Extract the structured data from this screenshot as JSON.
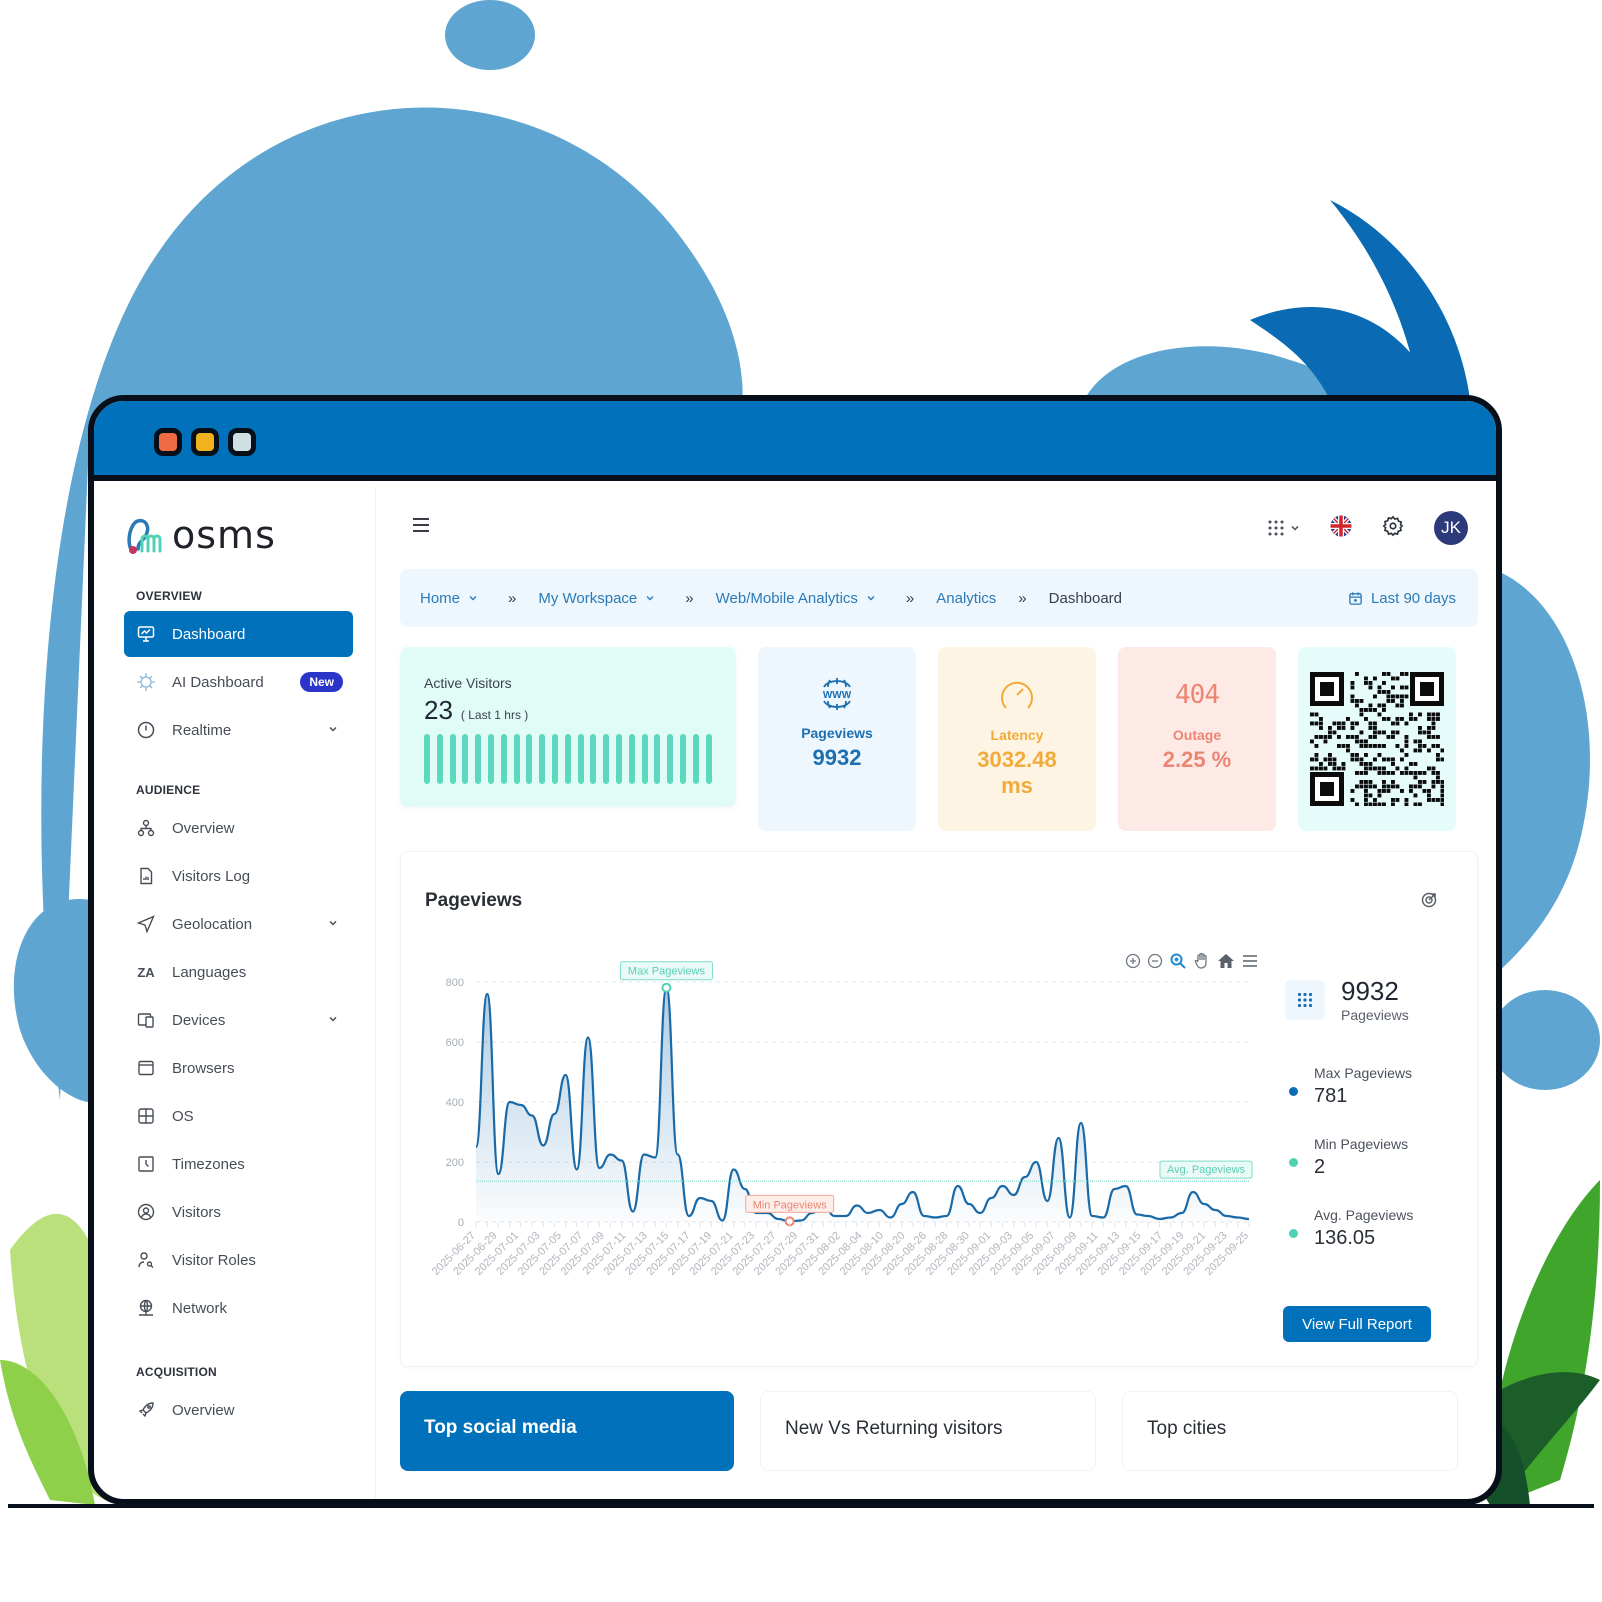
{
  "window": {
    "controls": [
      "close",
      "minimize",
      "maximize"
    ]
  },
  "brand": {
    "name": "OSMS",
    "logo_text": "osms"
  },
  "sidebar": {
    "sections": [
      {
        "label": "OVERVIEW",
        "items": [
          {
            "label": "Dashboard",
            "icon": "monitor-chart-icon",
            "active": true
          },
          {
            "label": "AI Dashboard",
            "icon": "ai-brain-icon",
            "badge": "New"
          },
          {
            "label": "Realtime",
            "icon": "clock-icon",
            "expandable": true
          }
        ]
      },
      {
        "label": "AUDIENCE",
        "items": [
          {
            "label": "Overview",
            "icon": "hierarchy-icon"
          },
          {
            "label": "Visitors Log",
            "icon": "file-chart-icon"
          },
          {
            "label": "Geolocation",
            "icon": "navigation-icon",
            "expandable": true
          },
          {
            "label": "Languages",
            "icon": "translate-icon"
          },
          {
            "label": "Devices",
            "icon": "devices-icon",
            "expandable": true
          },
          {
            "label": "Browsers",
            "icon": "browser-window-icon"
          },
          {
            "label": "OS",
            "icon": "windows-grid-icon"
          },
          {
            "label": "Timezones",
            "icon": "timezone-clock-icon"
          },
          {
            "label": "Visitors",
            "icon": "user-circle-icon"
          },
          {
            "label": "Visitor Roles",
            "icon": "user-search-icon"
          },
          {
            "label": "Network",
            "icon": "globe-network-icon"
          }
        ]
      },
      {
        "label": "ACQUISITION",
        "items": [
          {
            "label": "Overview",
            "icon": "rocket-icon"
          }
        ]
      }
    ]
  },
  "topbar": {
    "menu_icon": "hamburger-icon",
    "apps_icon": "grid-dots-icon",
    "language": "English (UK)",
    "settings_icon": "gear-icon",
    "avatar_initials": "JK"
  },
  "breadcrumb": {
    "items": [
      {
        "label": "Home",
        "dropdown": true
      },
      {
        "label": "My Workspace",
        "dropdown": true
      },
      {
        "label": "Web/Mobile Analytics",
        "dropdown": true
      },
      {
        "label": "Analytics",
        "dropdown": false
      },
      {
        "label": "Dashboard",
        "current": true
      }
    ],
    "separator": "»",
    "date_range": "Last 90 days"
  },
  "stats": {
    "active_visitors": {
      "label": "Active Visitors",
      "value": "23",
      "period": "( Last 1 hrs )",
      "bar_count": 23
    },
    "pageviews": {
      "label": "Pageviews",
      "value": "9932",
      "color": "#1d6fb0"
    },
    "latency": {
      "label": "Latency",
      "value": "3032.48",
      "unit": "ms",
      "color": "#f2ab3a"
    },
    "outage": {
      "label": "Outage",
      "value": "2.25 %",
      "icon_text": "404",
      "color": "#ec8672"
    }
  },
  "pageviews_panel": {
    "title": "Pageviews",
    "total": "9932",
    "total_label": "Pageviews",
    "legend": [
      {
        "label": "Max Pageviews",
        "value": "781",
        "color": "#0b6db3"
      },
      {
        "label": "Min Pageviews",
        "value": "2",
        "color": "#4fd1b5"
      },
      {
        "label": "Avg. Pageviews",
        "value": "136.05",
        "color": "#4fd1b5"
      }
    ],
    "button": "View Full Report",
    "annotations": {
      "max": "Max Pageviews",
      "min": "Min Pageviews",
      "avg": "Avg. Pageviews"
    },
    "toolbar": [
      "zoom-in",
      "zoom-out",
      "selection-zoom",
      "pan",
      "reset-home",
      "menu"
    ]
  },
  "chart_data": {
    "type": "area",
    "title": "Pageviews",
    "xlabel": "",
    "ylabel": "",
    "ylim": [
      0,
      800
    ],
    "yticks": [
      0,
      200,
      400,
      600,
      800
    ],
    "grid": true,
    "x_tick_labels": [
      "2025-06-27",
      "2025-06-29",
      "2025-07-01",
      "2025-07-03",
      "2025-07-05",
      "2025-07-07",
      "2025-07-09",
      "2025-07-11",
      "2025-07-13",
      "2025-07-15",
      "2025-07-17",
      "2025-07-19",
      "2025-07-21",
      "2025-07-23",
      "2025-07-27",
      "2025-07-29",
      "2025-07-31",
      "2025-08-02",
      "2025-08-04",
      "2025-08-10",
      "2025-08-20",
      "2025-08-26",
      "2025-08-28",
      "2025-08-30",
      "2025-09-01",
      "2025-09-03",
      "2025-09-05",
      "2025-09-07",
      "2025-09-09",
      "2025-09-11",
      "2025-09-13",
      "2025-09-15",
      "2025-09-17",
      "2025-09-19",
      "2025-09-21",
      "2025-09-23",
      "2025-09-25"
    ],
    "series": [
      {
        "name": "Pageviews",
        "values": [
          250,
          760,
          160,
          400,
          390,
          355,
          255,
          360,
          490,
          175,
          615,
          180,
          225,
          205,
          35,
          225,
          215,
          781,
          225,
          20,
          80,
          70,
          5,
          175,
          110,
          30,
          30,
          10,
          2,
          5,
          30,
          60,
          20,
          20,
          55,
          30,
          40,
          15,
          60,
          100,
          20,
          15,
          20,
          120,
          60,
          30,
          80,
          120,
          90,
          150,
          200,
          70,
          280,
          15,
          330,
          20,
          15,
          110,
          120,
          25,
          20,
          10,
          15,
          30,
          100,
          60,
          40,
          20,
          15,
          10
        ]
      }
    ],
    "reference_lines": {
      "max": 781,
      "min": 2,
      "avg": 136.05
    }
  },
  "bottom_cards": [
    {
      "title": "Top social media",
      "primary": true
    },
    {
      "title": "New Vs Returning visitors"
    },
    {
      "title": "Top cities"
    }
  ]
}
